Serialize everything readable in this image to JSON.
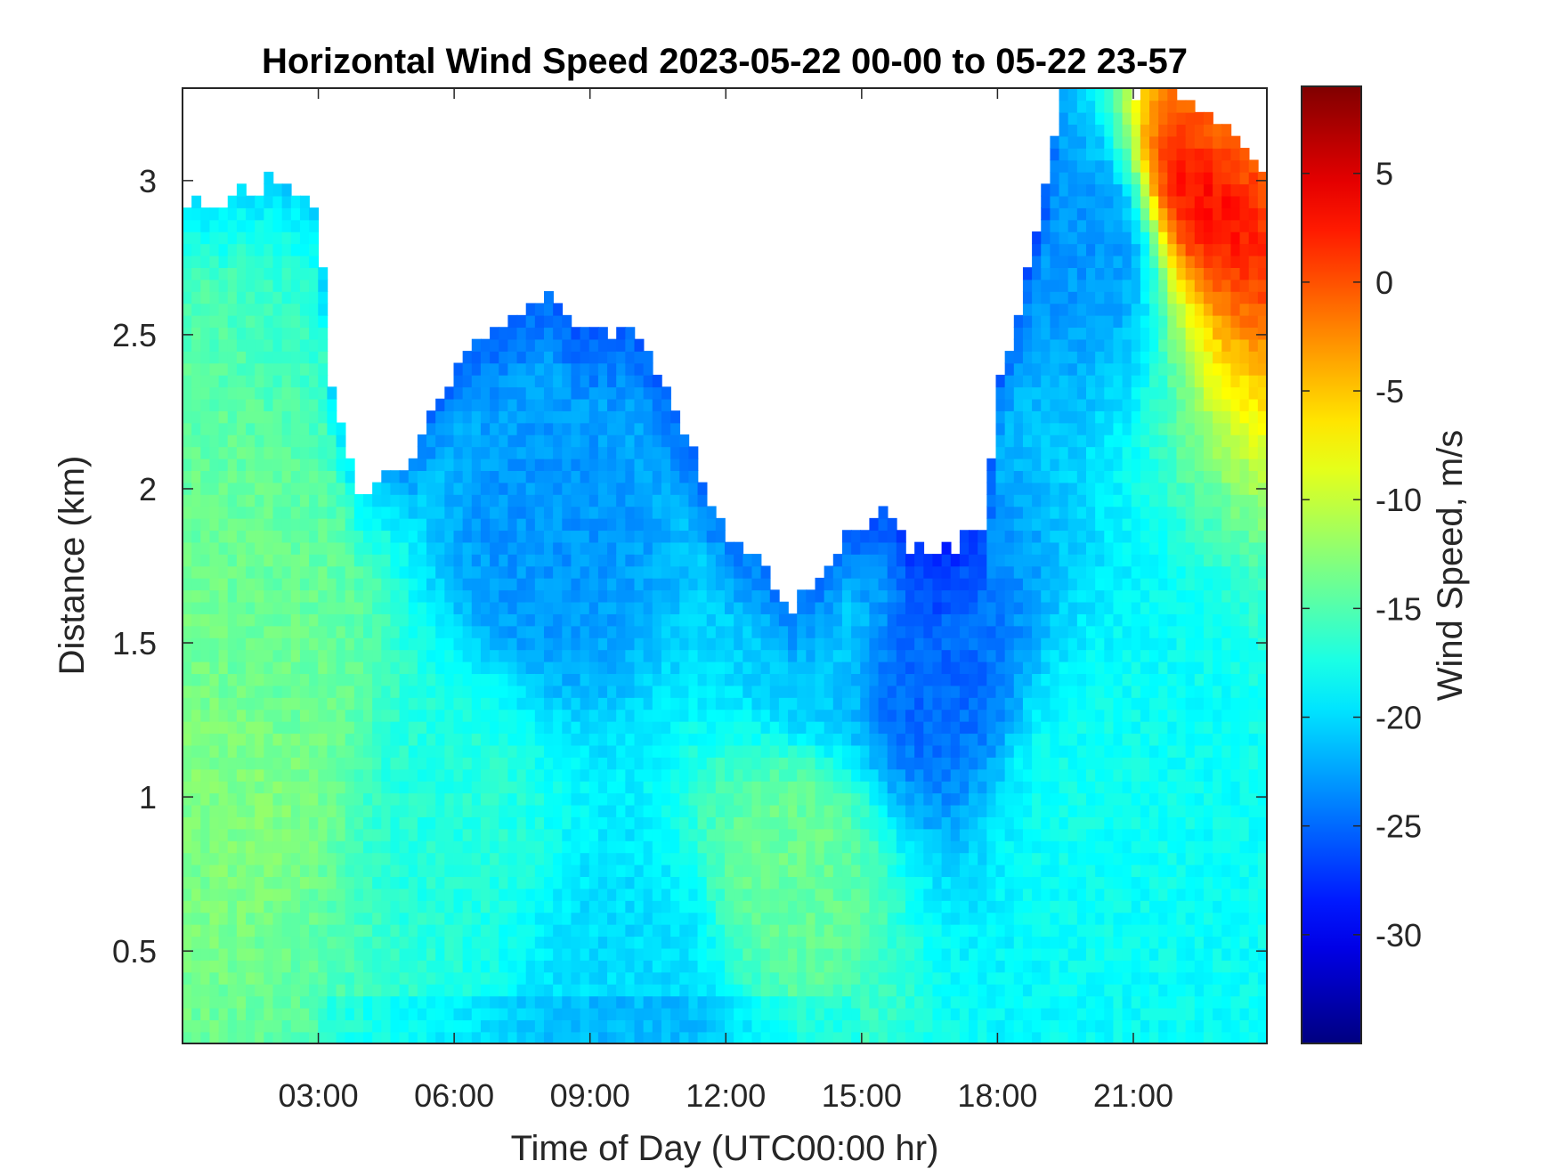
{
  "chart_data": {
    "type": "heatmap",
    "title": "Horizontal Wind Speed 2023-05-22 00-00 to 05-22 23-57",
    "xlabel": "Time of Day (UTC00:00 hr)",
    "ylabel": "Distance (km)",
    "colorbar_label": "Wind Speed, m/s",
    "colormap": "jet",
    "xlim_hours": [
      0,
      23.95
    ],
    "ylim_km": [
      0.2,
      3.3
    ],
    "clim": [
      -35,
      9
    ],
    "x_ticks": [
      {
        "hour": 3,
        "label": "03:00"
      },
      {
        "hour": 6,
        "label": "06:00"
      },
      {
        "hour": 9,
        "label": "09:00"
      },
      {
        "hour": 12,
        "label": "12:00"
      },
      {
        "hour": 15,
        "label": "15:00"
      },
      {
        "hour": 18,
        "label": "18:00"
      },
      {
        "hour": 21,
        "label": "21:00"
      }
    ],
    "y_ticks": [
      {
        "km": 0.5,
        "label": "0.5"
      },
      {
        "km": 1,
        "label": "1"
      },
      {
        "km": 1.5,
        "label": "1.5"
      },
      {
        "km": 2,
        "label": "2"
      },
      {
        "km": 2.5,
        "label": "2.5"
      },
      {
        "km": 3,
        "label": "3"
      }
    ],
    "colorbar_ticks": [
      {
        "value": 5,
        "label": "5"
      },
      {
        "value": 0,
        "label": "0"
      },
      {
        "value": -5,
        "label": "-5"
      },
      {
        "value": -10,
        "label": "-10"
      },
      {
        "value": -15,
        "label": "-15"
      },
      {
        "value": -20,
        "label": "-20"
      },
      {
        "value": -25,
        "label": "-25"
      },
      {
        "value": -30,
        "label": "-30"
      }
    ],
    "data_top_km_by_hour": [
      [
        0,
        2.9
      ],
      [
        1,
        2.95
      ],
      [
        2,
        3.0
      ],
      [
        3,
        2.9
      ],
      [
        3.3,
        2.3
      ],
      [
        4,
        1.95
      ],
      [
        5,
        2.1
      ],
      [
        6,
        2.4
      ],
      [
        7,
        2.55
      ],
      [
        8,
        2.65
      ],
      [
        9,
        2.5
      ],
      [
        10,
        2.5
      ],
      [
        11,
        2.2
      ],
      [
        12,
        1.85
      ],
      [
        13,
        1.72
      ],
      [
        13.5,
        1.62
      ],
      [
        14,
        1.72
      ],
      [
        14.8,
        1.85
      ],
      [
        15.5,
        1.95
      ],
      [
        16,
        1.8
      ],
      [
        17,
        1.8
      ],
      [
        17.7,
        1.9
      ],
      [
        18,
        2.3
      ],
      [
        18.8,
        2.8
      ],
      [
        19.5,
        3.3
      ],
      [
        22,
        3.3
      ],
      [
        23.95,
        3.05
      ]
    ],
    "speed_samples_m_s": [
      {
        "hour": 1.5,
        "km": 1.1,
        "value": -13
      },
      {
        "hour": 2,
        "km": 1.4,
        "value": -14
      },
      {
        "hour": 6,
        "km": 1.0,
        "value": -17
      },
      {
        "hour": 8,
        "km": 1.8,
        "value": -23
      },
      {
        "hour": 10,
        "km": 0.4,
        "value": -20
      },
      {
        "hour": 13.5,
        "km": 0.82,
        "value": -14
      },
      {
        "hour": 14,
        "km": 1.5,
        "value": -21
      },
      {
        "hour": 16.5,
        "km": 1.4,
        "value": -25
      },
      {
        "hour": 20,
        "km": 1.0,
        "value": -18
      },
      {
        "hour": 20,
        "km": 2.8,
        "value": -23
      },
      {
        "hour": 22.7,
        "km": 3.05,
        "value": 3
      }
    ]
  }
}
